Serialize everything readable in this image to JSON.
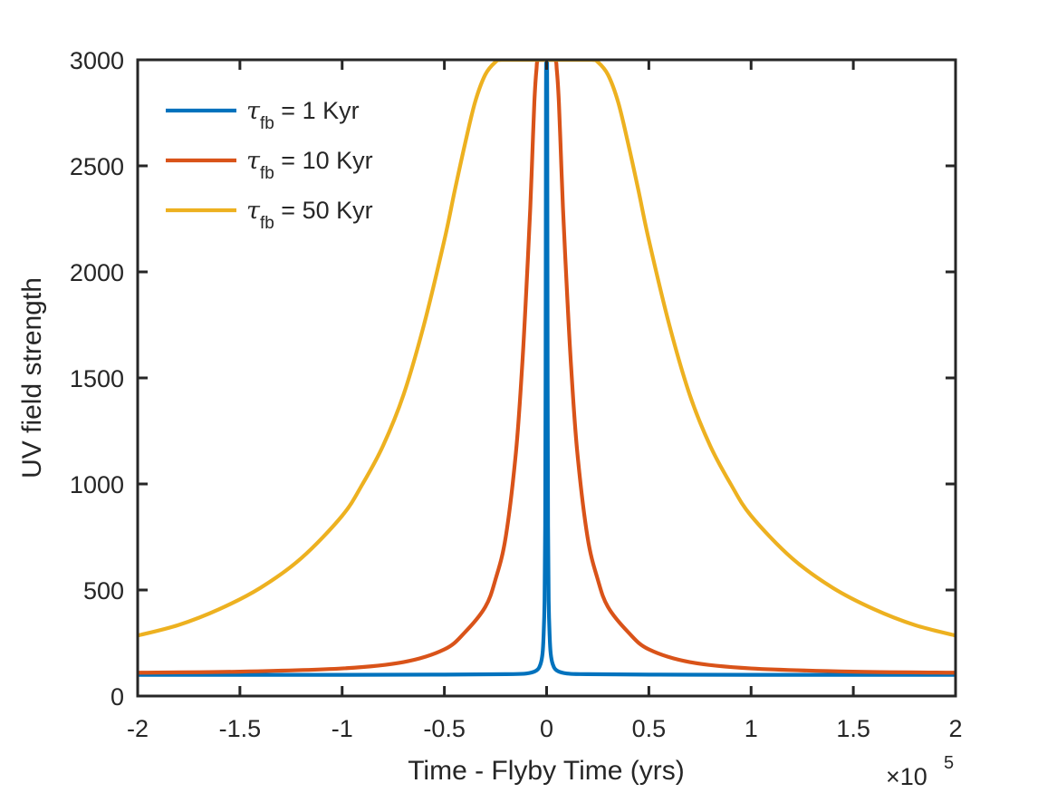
{
  "chart_data": {
    "type": "line",
    "title": "",
    "xlabel": "Time - Flyby Time (yrs)",
    "ylabel": "UV field strength",
    "x_multiplier_label": "×10",
    "x_multiplier_exponent": "5",
    "xlim": [
      -2,
      2
    ],
    "ylim": [
      0,
      3000
    ],
    "xticks": [
      -2,
      -1.5,
      -1,
      -0.5,
      0,
      0.5,
      1,
      1.5,
      2
    ],
    "xtick_labels": [
      "-2",
      "-1.5",
      "-1",
      "-0.5",
      "0",
      "0.5",
      "1",
      "1.5",
      "2"
    ],
    "yticks": [
      0,
      500,
      1000,
      1500,
      2000,
      2500,
      3000
    ],
    "ytick_labels": [
      "0",
      "500",
      "1000",
      "1500",
      "2000",
      "2500",
      "3000"
    ],
    "grid": false,
    "legend_position": "top-left",
    "series": [
      {
        "name": "τfb = 1 Kyr",
        "legend_symbol": "τ",
        "legend_subscript": "fb",
        "legend_suffix": " = 1 Kyr",
        "color": "#0072BD",
        "x": [
          -2,
          -1,
          -0.5,
          -0.2,
          -0.1,
          -0.05,
          -0.03,
          -0.02,
          -0.015,
          -0.01,
          -0.007,
          -0.005,
          -0.003,
          -0.002,
          0,
          0.002,
          0.003,
          0.005,
          0.007,
          0.01,
          0.015,
          0.02,
          0.03,
          0.05,
          0.1,
          0.2,
          0.5,
          1,
          2
        ],
        "y": [
          100,
          100,
          101,
          103,
          106,
          120,
          150,
          200,
          280,
          450,
          800,
          1500,
          2800,
          3000,
          3000,
          3000,
          2800,
          1500,
          800,
          450,
          280,
          200,
          150,
          120,
          106,
          103,
          101,
          100,
          100
        ]
      },
      {
        "name": "τfb = 10 Kyr",
        "legend_symbol": "τ",
        "legend_subscript": "fb",
        "legend_suffix": " = 10 Kyr",
        "color": "#D95319",
        "x": [
          -2,
          -1.5,
          -1,
          -0.7,
          -0.5,
          -0.4,
          -0.3,
          -0.25,
          -0.2,
          -0.15,
          -0.12,
          -0.1,
          -0.08,
          -0.07,
          -0.06,
          -0.05,
          -0.04,
          0.04,
          0.05,
          0.06,
          0.07,
          0.08,
          0.1,
          0.12,
          0.15,
          0.2,
          0.25,
          0.3,
          0.4,
          0.5,
          0.7,
          1,
          1.5,
          2
        ],
        "y": [
          110,
          115,
          130,
          160,
          220,
          300,
          420,
          550,
          750,
          1150,
          1550,
          1900,
          2300,
          2550,
          2800,
          2950,
          3000,
          3000,
          2950,
          2800,
          2550,
          2300,
          1900,
          1550,
          1150,
          750,
          550,
          420,
          300,
          220,
          160,
          130,
          115,
          110
        ]
      },
      {
        "name": "τfb = 50 Kyr",
        "legend_symbol": "τ",
        "legend_subscript": "fb",
        "legend_suffix": " = 50 Kyr",
        "color": "#EDB120",
        "x": [
          -2,
          -1.8,
          -1.6,
          -1.4,
          -1.2,
          -1,
          -0.9,
          -0.8,
          -0.7,
          -0.6,
          -0.5,
          -0.45,
          -0.4,
          -0.35,
          -0.3,
          -0.25,
          -0.22,
          0.22,
          0.25,
          0.3,
          0.35,
          0.4,
          0.45,
          0.5,
          0.6,
          0.7,
          0.8,
          0.9,
          1,
          1.2,
          1.4,
          1.6,
          1.8,
          2
        ],
        "y": [
          285,
          335,
          410,
          510,
          650,
          850,
          1000,
          1180,
          1420,
          1750,
          2150,
          2380,
          2600,
          2800,
          2930,
          2990,
          3000,
          3000,
          2990,
          2930,
          2800,
          2600,
          2380,
          2150,
          1750,
          1420,
          1180,
          1000,
          850,
          650,
          510,
          410,
          335,
          285
        ]
      }
    ]
  }
}
